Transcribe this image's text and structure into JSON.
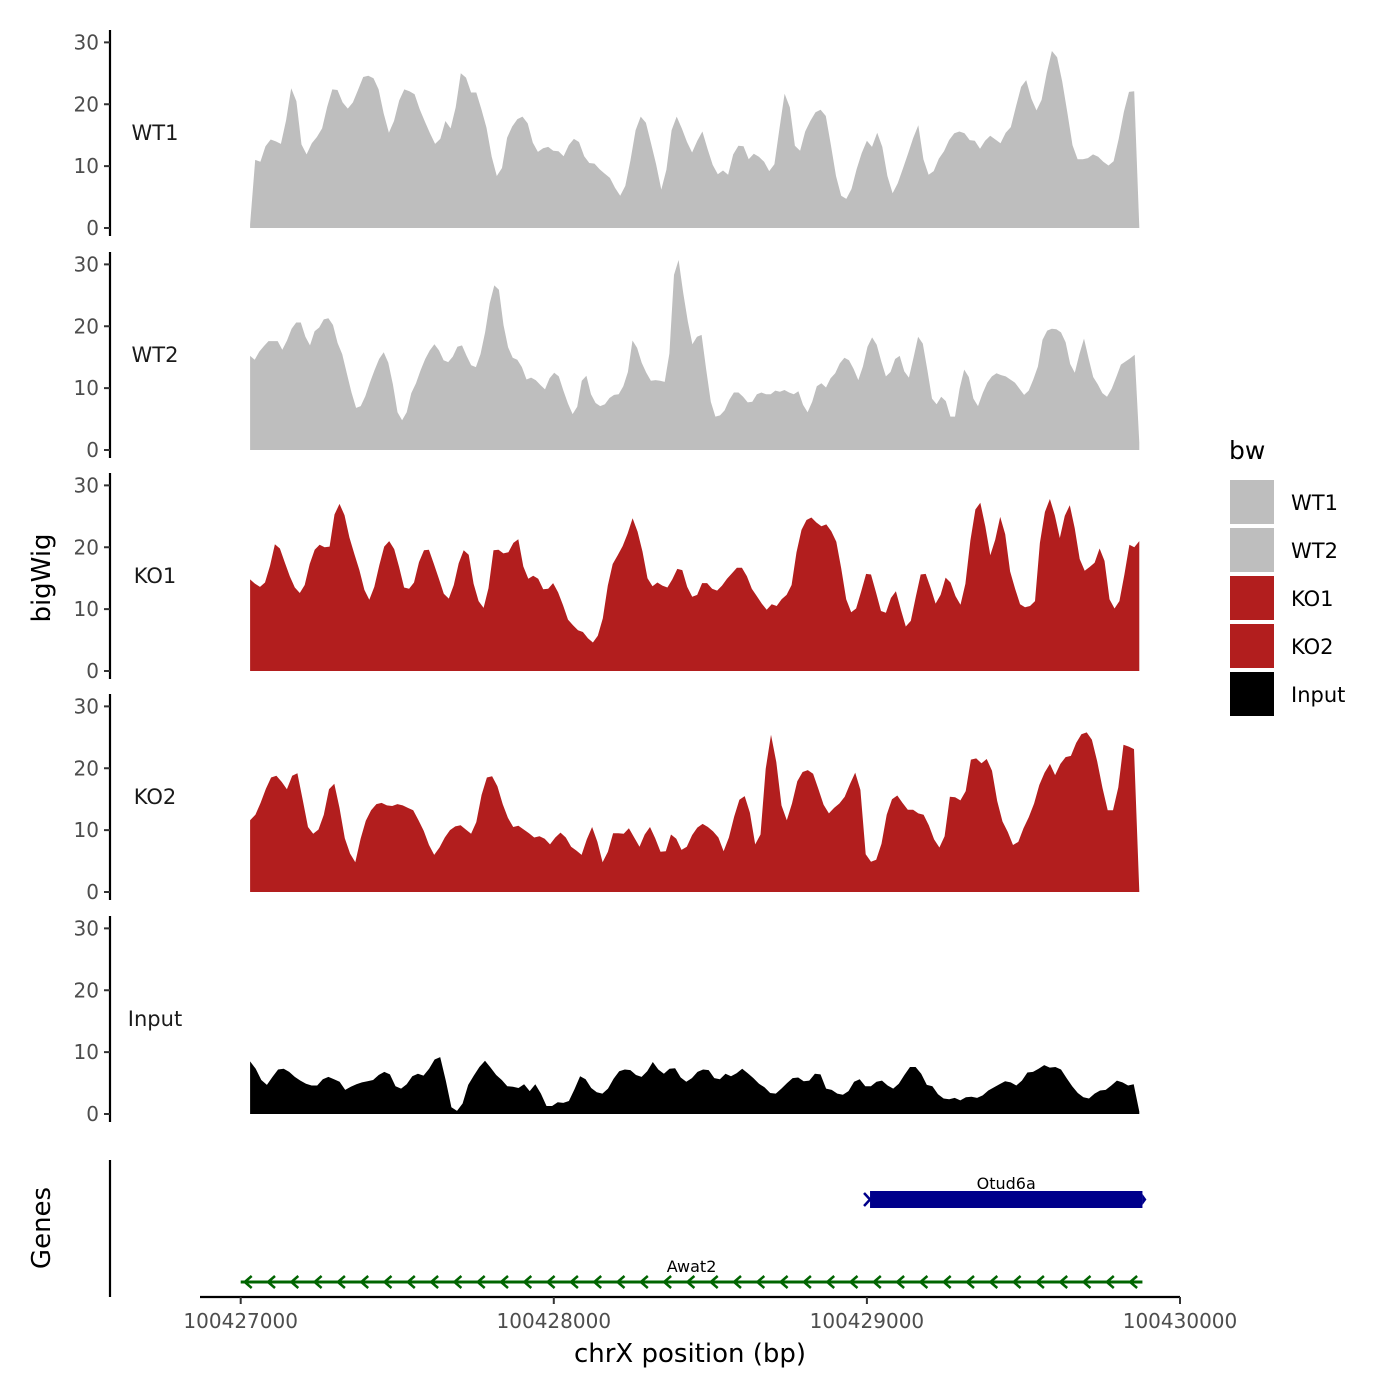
{
  "chart_data": {
    "type": "area",
    "x_axis": {
      "label": "chrX position (bp)",
      "range": [
        100426870,
        100430000
      ],
      "ticks": [
        100427000,
        100428000,
        100429000,
        100430000
      ],
      "tick_labels": [
        "100427000",
        "100428000",
        "100429000",
        "100430000"
      ]
    },
    "y_axis": {
      "label": "bigWig",
      "range": [
        0,
        32
      ],
      "ticks": [
        0,
        10,
        20,
        30
      ],
      "tick_labels": [
        "0",
        "10",
        "20",
        "30"
      ]
    },
    "data_x_range": [
      100427030,
      100429870
    ],
    "series": [
      {
        "name": "WT1",
        "label": "WT1",
        "color": "#bebebe",
        "values": [
          0.6,
          11,
          10.7,
          13.2,
          14.3,
          14,
          13.6,
          17.4,
          22.6,
          20.5,
          13.5,
          11.9,
          13.7,
          14.7,
          16.1,
          19.6,
          22.4,
          22.3,
          20.3,
          19.3,
          20.3,
          22.3,
          24.4,
          24.6,
          24.2,
          22.4,
          18.5,
          15.4,
          17.3,
          20.6,
          22.4,
          22.1,
          21.6,
          19.2,
          17.2,
          15.3,
          13.6,
          14.4,
          17.3,
          16.1,
          19.5,
          25,
          24.3,
          21.9,
          21.9,
          19.2,
          16.2,
          11.5,
          8.4,
          9.7,
          14.6,
          16.4,
          17.6,
          18,
          16.9,
          13.8,
          12.3,
          12.9,
          13.1,
          12.5,
          12.4,
          11.6,
          13.4,
          14.4,
          13.9,
          11.6,
          10.5,
          10.4,
          9.5,
          8.8,
          8.1,
          6.5,
          5.2,
          6.8,
          10.9,
          15.8,
          18,
          17,
          13.7,
          10.3,
          6.2,
          9.4,
          15.8,
          18,
          16.1,
          13.9,
          12.2,
          14.1,
          15.6,
          12.8,
          10.2,
          8.7,
          9.3,
          8.6,
          11.9,
          13.3,
          13.2,
          11.1,
          12,
          11.5,
          10.7,
          9.2,
          10.3,
          16.1,
          21.7,
          19.5,
          13.3,
          12.5,
          15.6,
          17.3,
          18.7,
          19.1,
          18.1,
          13.4,
          8.4,
          5.2,
          4.7,
          6.3,
          9.5,
          12.1,
          14.1,
          13.1,
          15.4,
          13.1,
          8.4,
          5.6,
          7.2,
          9.6,
          12,
          14.5,
          16.6,
          11.1,
          8.6,
          9.2,
          11.2,
          12.4,
          14.2,
          15.3,
          15.6,
          15.3,
          14.2,
          14.1,
          12.8,
          14.1,
          14.9,
          14.3,
          13.7,
          15.4,
          16.3,
          19.6,
          22.8,
          23.9,
          20.9,
          19,
          20.7,
          25.1,
          28.6,
          27.6,
          23.7,
          18.7,
          13.4,
          11.1,
          11.1,
          11.3,
          11.9,
          11.5,
          10.7,
          10.1,
          10.8,
          14.4,
          18.8,
          22,
          22.1,
          0.1
        ]
      },
      {
        "name": "WT2",
        "label": "WT2",
        "color": "#bebebe",
        "values": [
          15.2,
          14.6,
          15.9,
          16.8,
          17.6,
          17.6,
          17.6,
          16.2,
          17.7,
          19.6,
          20.6,
          20.6,
          18.3,
          16.9,
          19.2,
          19.8,
          21.1,
          21.3,
          20.2,
          17.3,
          15.5,
          12.4,
          9.3,
          6.8,
          7.1,
          8.7,
          10.9,
          12.9,
          14.7,
          15.8,
          14.1,
          10.6,
          6.1,
          4.8,
          6.1,
          9.2,
          10.8,
          12.9,
          14.7,
          16.1,
          17.1,
          16.1,
          14.5,
          14.2,
          15.1,
          16.7,
          16.9,
          15.2,
          13.7,
          13.4,
          15.5,
          19,
          23.7,
          26.6,
          25.9,
          20.2,
          16.6,
          14.9,
          14.6,
          13.4,
          11.4,
          11.7,
          11.3,
          10.5,
          9.8,
          11.6,
          12.5,
          11.9,
          9.6,
          7.5,
          5.8,
          7,
          11.2,
          12,
          9,
          7.6,
          7.1,
          7.4,
          8.4,
          8.9,
          9,
          10.3,
          12.6,
          17.7,
          16.5,
          14.1,
          12.5,
          11.2,
          11.3,
          11.2,
          11,
          15.6,
          28.3,
          30.7,
          25.4,
          20.8,
          17.1,
          18.3,
          18.6,
          13,
          7.8,
          5.4,
          5.6,
          6.4,
          8.1,
          9.3,
          9.3,
          8.6,
          7.7,
          7.8,
          9,
          9.3,
          9,
          9,
          9.6,
          9.4,
          9.7,
          9.3,
          9,
          9.5,
          7.3,
          6.1,
          7.8,
          10.3,
          10.8,
          10.1,
          11.6,
          12.4,
          14,
          14.9,
          14.5,
          13.1,
          11.3,
          13.5,
          16.7,
          18.2,
          17,
          14.3,
          11.9,
          12.6,
          14.7,
          15.2,
          12.7,
          11.7,
          14.9,
          18.3,
          17.2,
          12.9,
          8.3,
          7.4,
          8.6,
          7.9,
          5.4,
          5.4,
          9.9,
          13,
          11.8,
          8.3,
          7.1,
          9.2,
          10.9,
          11.9,
          12.4,
          12.1,
          11.9,
          11.4,
          10.9,
          9.9,
          8.9,
          9.6,
          11.4,
          13.5,
          17.8,
          19.3,
          19.6,
          19.5,
          19,
          17.4,
          13.9,
          12.5,
          15.5,
          18,
          14.8,
          11.8,
          10.6,
          9.2,
          8.6,
          9.9,
          11.8,
          13.8,
          14.3,
          14.8,
          15.4,
          1.2
        ]
      },
      {
        "name": "KO1",
        "label": "KO1",
        "color": "#b21e1e",
        "values": [
          14.8,
          14.1,
          13.6,
          14.3,
          17,
          20.5,
          19.8,
          17.5,
          15.3,
          13.5,
          12.6,
          13.9,
          17.3,
          19.6,
          20.4,
          20,
          20.1,
          25.3,
          27,
          25.2,
          21.6,
          18.9,
          16.3,
          13.1,
          11.5,
          13.6,
          17.1,
          20.1,
          21,
          19.7,
          16.8,
          13.5,
          13.3,
          14.3,
          17.6,
          19.5,
          19.6,
          17.3,
          14.9,
          12.5,
          11.7,
          13.9,
          17.4,
          19.5,
          18.8,
          14.1,
          11.3,
          10.2,
          13.4,
          19.5,
          19.6,
          19,
          19.2,
          20.7,
          21.3,
          16.9,
          14.9,
          15.4,
          14.9,
          13.2,
          13.3,
          14.2,
          12.7,
          10.6,
          8.3,
          7.4,
          6.6,
          6.3,
          5.3,
          4.6,
          5.7,
          8.5,
          13.8,
          17.3,
          18.7,
          20.2,
          22.2,
          24.7,
          22.5,
          19.3,
          15,
          13.7,
          14.3,
          13.8,
          13.5,
          14.8,
          16.5,
          16.3,
          13.6,
          12,
          12.3,
          14.2,
          14.2,
          13.3,
          13,
          13.8,
          14.9,
          15.8,
          16.7,
          16.7,
          15.3,
          13.3,
          12.1,
          10.9,
          9.9,
          10.8,
          10.5,
          11.6,
          12.3,
          13.9,
          19.2,
          22.8,
          24.4,
          24.8,
          24,
          23.4,
          23.7,
          22.6,
          20.9,
          16.6,
          11.6,
          9.5,
          10.1,
          12.8,
          15.7,
          15.6,
          12.7,
          9.7,
          9.4,
          11.8,
          12.9,
          9.9,
          7.2,
          8.1,
          12,
          15.6,
          15.7,
          13.4,
          10.9,
          12.3,
          15.1,
          14.3,
          12.1,
          10.7,
          14.1,
          21.1,
          26.1,
          27.2,
          23.4,
          18.7,
          21.2,
          24.9,
          22.1,
          16.1,
          13.3,
          10.8,
          10.3,
          10.5,
          11.3,
          20.7,
          25.7,
          27.8,
          25.2,
          21.5,
          25.1,
          26.8,
          23.1,
          18.1,
          16.2,
          16.8,
          17.5,
          19.8,
          17.8,
          11.6,
          10.1,
          11.3,
          15.6,
          20.4,
          20,
          21
        ]
      },
      {
        "name": "KO2",
        "label": "KO2",
        "color": "#b21e1e",
        "values": [
          11.6,
          12.5,
          14.4,
          16.7,
          18.5,
          18.8,
          17.8,
          16.6,
          18.8,
          19.2,
          14.9,
          10.5,
          9.4,
          10.1,
          12.5,
          16.6,
          17.5,
          13.6,
          8.7,
          6.2,
          4.8,
          8.6,
          11.5,
          13.2,
          14.2,
          14.4,
          14,
          13.9,
          14.2,
          14,
          13.6,
          13.2,
          11.6,
          9.9,
          7.6,
          6,
          7.2,
          8.8,
          10,
          10.6,
          10.8,
          10.1,
          9.4,
          11.3,
          15.7,
          18.5,
          18.7,
          17.1,
          14.2,
          12,
          10.5,
          10.7,
          10.1,
          9.5,
          8.8,
          9,
          8.6,
          7.7,
          8.8,
          9.6,
          8.8,
          7.3,
          6.7,
          6,
          8.5,
          10.5,
          8.1,
          4.8,
          6.5,
          9.5,
          9.5,
          9.4,
          10.3,
          8.8,
          7.3,
          9.3,
          10.5,
          8.7,
          6.5,
          6.6,
          9.3,
          8.6,
          6.8,
          7.3,
          9.2,
          10.4,
          11,
          10.5,
          9.8,
          8.8,
          6.6,
          8.8,
          12.2,
          14.9,
          15.5,
          12.8,
          7.7,
          9.3,
          19.9,
          25.4,
          21,
          14,
          11.6,
          14.3,
          17.9,
          19.4,
          19.7,
          19.1,
          16.7,
          14.1,
          12.7,
          13.6,
          14.3,
          15.4,
          17.4,
          19.3,
          16.5,
          6.1,
          4.9,
          5.2,
          7.8,
          12.5,
          15,
          15.6,
          14.4,
          13.3,
          13.3,
          12.7,
          12.5,
          10.8,
          8.5,
          7.2,
          9,
          15.4,
          15.3,
          14.8,
          16.3,
          21.4,
          21.6,
          20.8,
          21.5,
          19.6,
          14.7,
          11.4,
          9.7,
          7.6,
          8.1,
          10.3,
          12.1,
          14.3,
          17.3,
          19.3,
          20.7,
          18.9,
          20.7,
          21.8,
          22,
          24.1,
          25.5,
          25.8,
          24.6,
          21.1,
          16.8,
          13.2,
          13.2,
          16.9,
          23.8,
          23.5,
          23.1,
          0.1
        ]
      },
      {
        "name": "Input",
        "label": "Input",
        "color": "#000000",
        "values": [
          8.5,
          7.3,
          5.5,
          4.7,
          6,
          7.2,
          7.3,
          6.8,
          6,
          5.4,
          4.9,
          4.6,
          4.6,
          5.6,
          6,
          5.6,
          5.2,
          3.9,
          4.4,
          4.8,
          5.1,
          5.3,
          5.5,
          6.3,
          6.8,
          6.4,
          4.5,
          4.1,
          4.8,
          6.1,
          6.5,
          6.2,
          7.3,
          8.8,
          9.2,
          5.4,
          1.1,
          0.5,
          1.7,
          4.7,
          6.2,
          7.6,
          8.6,
          7.5,
          6.3,
          5.5,
          4.5,
          4.4,
          4.2,
          4.8,
          3.7,
          4.8,
          3.3,
          1.3,
          1.3,
          1.9,
          1.8,
          2.1,
          4,
          6.1,
          5.6,
          4.2,
          3.5,
          3.3,
          4.1,
          5.7,
          6.9,
          7.2,
          7.1,
          6.3,
          6,
          6.9,
          8.4,
          7.2,
          6.5,
          7.3,
          7.4,
          5.9,
          5.2,
          5.8,
          6.8,
          7.2,
          7.1,
          5.8,
          5.6,
          6.5,
          6.1,
          6.6,
          7.3,
          6.6,
          5.8,
          4.9,
          4.3,
          3.4,
          3.3,
          4.1,
          5,
          5.8,
          5.9,
          5.3,
          5.4,
          6.5,
          6.4,
          4.1,
          3.9,
          3.3,
          3.1,
          3.7,
          5.2,
          5.6,
          4.5,
          4.5,
          5.2,
          5.4,
          4.6,
          4.1,
          4.9,
          6.3,
          7.6,
          7.6,
          6.5,
          4.7,
          4.5,
          3.2,
          2.5,
          2.4,
          2.6,
          2.2,
          2.7,
          2.8,
          2.6,
          3,
          3.8,
          4.3,
          4.8,
          5.3,
          5.1,
          4.6,
          5.4,
          6.7,
          6.8,
          7.3,
          7.9,
          7.5,
          7.6,
          7.2,
          5.8,
          4.5,
          3.4,
          2.7,
          2.5,
          3.3,
          3.8,
          3.9,
          4.6,
          5.4,
          5.1,
          4.6,
          4.8,
          0.4
        ]
      }
    ],
    "genes_panel": {
      "label": "Genes",
      "genes": [
        {
          "name": "Otud6a",
          "start": 100429010,
          "end": 100429880,
          "strand": "+",
          "color": "#00008b"
        },
        {
          "name": "Awat2",
          "start": 100427000,
          "end": 100429880,
          "strand": "-",
          "color": "#006400"
        }
      ]
    },
    "legend": {
      "title": "bw",
      "position": "right",
      "entries": [
        {
          "label": "WT1",
          "color": "#bebebe"
        },
        {
          "label": "WT2",
          "color": "#bebebe"
        },
        {
          "label": "KO1",
          "color": "#b21e1e"
        },
        {
          "label": "KO2",
          "color": "#b21e1e"
        },
        {
          "label": "Input",
          "color": "#000000"
        }
      ]
    }
  }
}
